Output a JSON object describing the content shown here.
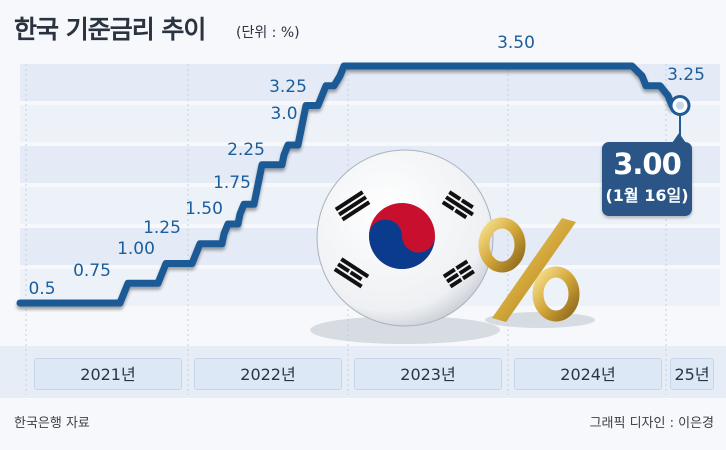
{
  "header": {
    "title": "한국 기준금리 추이",
    "unit": "(단위 : %)"
  },
  "chart_data": {
    "type": "line",
    "title": "한국 기준금리 추이",
    "unit": "(단위 : %)",
    "step": true,
    "x": [
      "2021-08",
      "2021-11",
      "2022-01",
      "2022-04",
      "2022-05",
      "2022-07",
      "2022-08",
      "2022-10",
      "2022-11",
      "2023-01",
      "2024-10",
      "2024-11",
      "2025-01"
    ],
    "values": [
      0.5,
      0.75,
      1.0,
      1.25,
      1.5,
      1.75,
      2.25,
      2.5,
      3.0,
      3.25,
      3.5,
      3.25,
      3.0
    ],
    "series_labels": [
      {
        "value": 0.5,
        "label": "0.5"
      },
      {
        "value": 0.75,
        "label": "0.75"
      },
      {
        "value": 1.0,
        "label": "1.00"
      },
      {
        "value": 1.25,
        "label": "1.25"
      },
      {
        "value": 1.5,
        "label": "1.50"
      },
      {
        "value": 1.75,
        "label": "1.75"
      },
      {
        "value": 2.25,
        "label": "2.25"
      },
      {
        "value": 3.0,
        "label": "3.0"
      },
      {
        "value": 3.25,
        "label": "3.25"
      },
      {
        "value": 3.5,
        "label": "3.50"
      },
      {
        "value": 3.25,
        "label": "3.25"
      }
    ],
    "categories": [
      "2021년",
      "2022년",
      "2023년",
      "2024년",
      "25년"
    ],
    "callout": {
      "value": "3.00",
      "date": "(1월 16일)"
    },
    "grid": true
  },
  "footer": {
    "source": "한국은행 자료",
    "credit": "그래픽 디자인 : 이은경"
  },
  "colors": {
    "line": "#1f5a96",
    "label": "#1c5d9c",
    "callout": "#2a5586",
    "flag_red": "#c8102e",
    "flag_blue": "#0b3b8c",
    "percent_gold": "#c9a23a"
  }
}
